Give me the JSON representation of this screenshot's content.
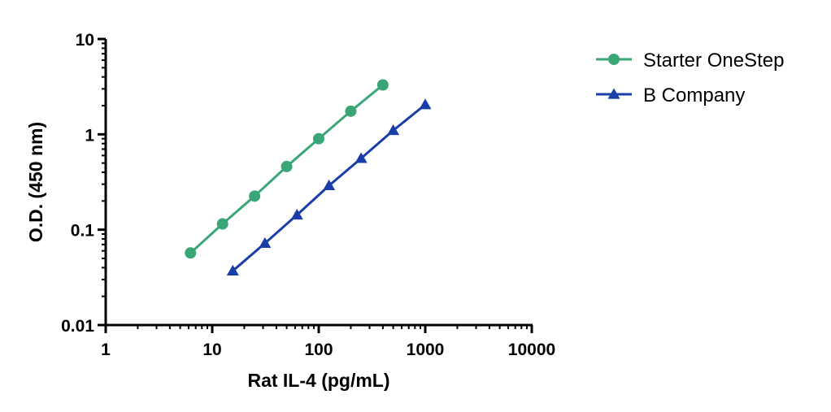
{
  "chart_data": {
    "type": "line",
    "xlabel": "Rat IL-4 (pg/mL)",
    "ylabel": "O.D. (450 nm)",
    "xscale": "log",
    "yscale": "log",
    "xlim": [
      1,
      10000
    ],
    "ylim": [
      0.01,
      10
    ],
    "x_ticks": [
      {
        "value": 1,
        "label": "1"
      },
      {
        "value": 10,
        "label": "10"
      },
      {
        "value": 100,
        "label": "100"
      },
      {
        "value": 1000,
        "label": "1000"
      },
      {
        "value": 10000,
        "label": "10000"
      }
    ],
    "y_ticks": [
      {
        "value": 0.01,
        "label": "0.01"
      },
      {
        "value": 0.1,
        "label": "0.1"
      },
      {
        "value": 1,
        "label": "1"
      },
      {
        "value": 10,
        "label": "10"
      }
    ],
    "legend_position": "right",
    "grid": false,
    "series": [
      {
        "name": "Starter OneStep",
        "color": "#3aa676",
        "marker": "circle",
        "x": [
          6.25,
          12.5,
          25,
          50,
          100,
          200,
          400
        ],
        "y": [
          0.057,
          0.115,
          0.225,
          0.46,
          0.9,
          1.75,
          3.3
        ]
      },
      {
        "name": "B Company",
        "color": "#1a3ea8",
        "marker": "triangle",
        "x": [
          15.6,
          31.25,
          62.5,
          125,
          250,
          500,
          1000
        ],
        "y": [
          0.037,
          0.072,
          0.143,
          0.29,
          0.56,
          1.1,
          2.05
        ]
      }
    ]
  }
}
